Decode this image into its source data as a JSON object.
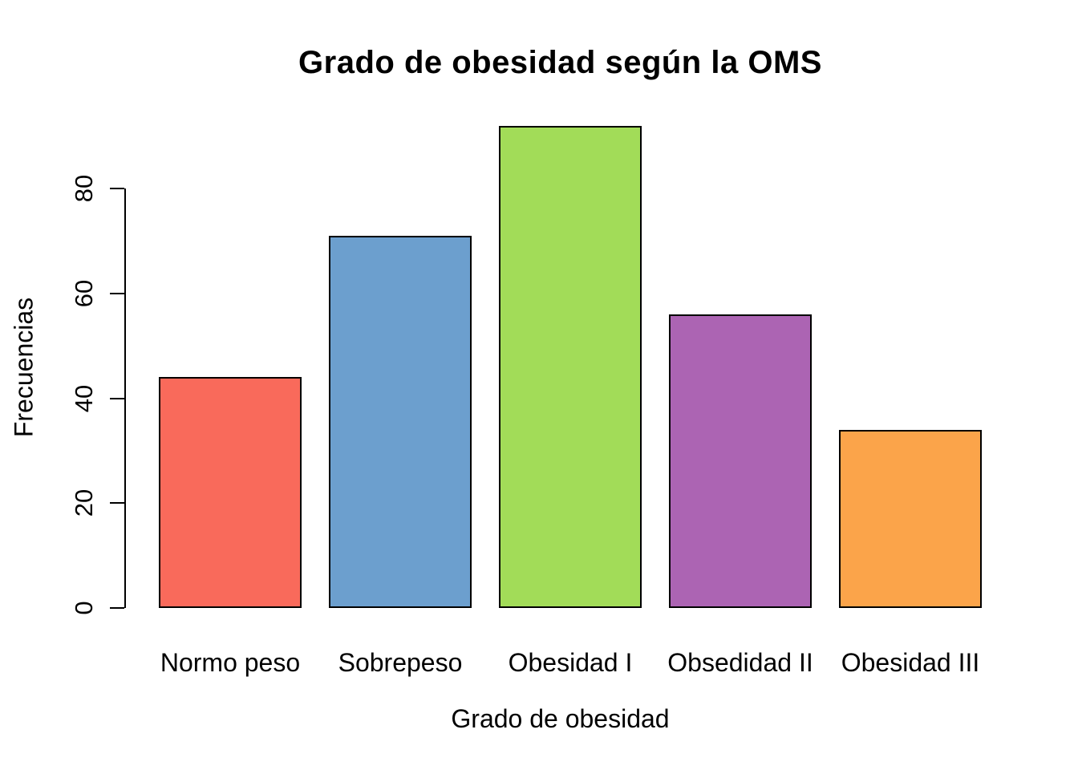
{
  "chart_data": {
    "type": "bar",
    "title": "Grado de obesidad según la OMS",
    "xlabel": "Grado de obesidad",
    "ylabel": "Frecuencias",
    "categories": [
      "Normo peso",
      "Sobrepeso",
      "Obesidad I",
      "Obsedidad II",
      "Obesidad III"
    ],
    "values": [
      44,
      71,
      92,
      56,
      34
    ],
    "bar_colors": [
      "#F96A5B",
      "#6C9FCE",
      "#A2DC58",
      "#AC64B3",
      "#FBA44A"
    ],
    "bar_border_color": "#000000",
    "yticks": [
      0,
      20,
      40,
      60,
      80
    ],
    "ylim": [
      0,
      94
    ],
    "grid": false,
    "legend": null,
    "background": "#FFFFFF",
    "axis_color": "#000000"
  }
}
